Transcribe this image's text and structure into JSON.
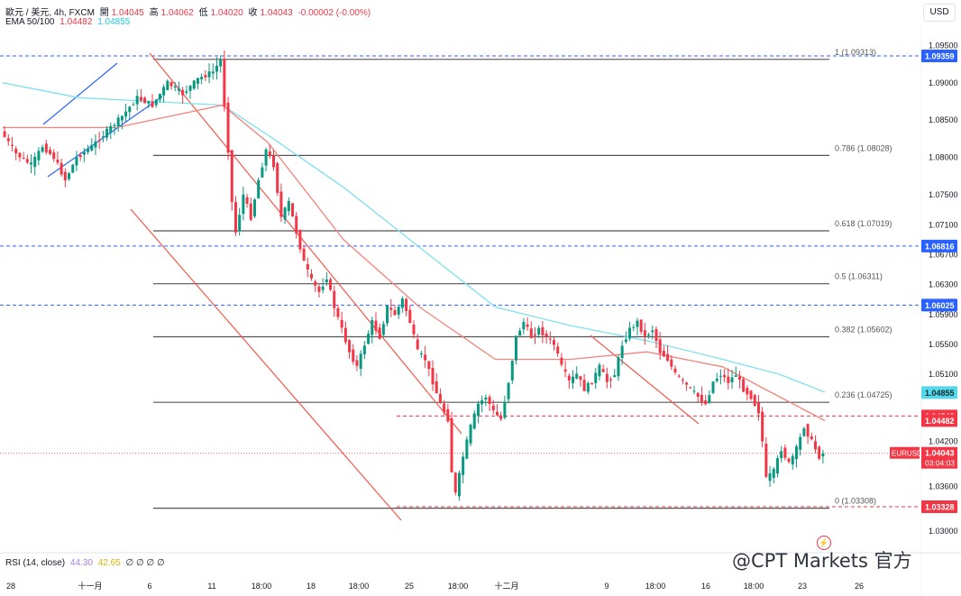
{
  "header": {
    "symbol": "歐元 / 美元, 4h, FXCM",
    "open_label": "開",
    "open": "1.04045",
    "high_label": "高",
    "high": "1.04062",
    "low_label": "低",
    "low": "1.04020",
    "close_label": "收",
    "close": "1.04043",
    "change": "-0.00002 (-0.00%)",
    "ema_label": "EMA 50/100",
    "ema50": "1.04482",
    "ema100": "1.04855",
    "rsi_label": "RSI (14, close)",
    "rsi_value": "44.30",
    "rsi_ma": "42.65",
    "rsi_extra": "∅ ∅ ∅ ∅"
  },
  "currency_button": "USD",
  "watermark": "@CPT Markets 官方",
  "colors": {
    "up": "#089981",
    "down": "#f23645",
    "ema50": "#f4837b",
    "ema100": "#7fe0ee",
    "channel": "#f5574b",
    "wedge": "#2962ff",
    "fib": "#555555",
    "dashed_blue": "#2962ff",
    "dashed_red": "#f23645"
  },
  "chart_data": {
    "type": "candlestick",
    "instrument": "EUR/USD",
    "timeframe": "4h",
    "ylim": [
      1.0278,
      1.0972
    ],
    "y_ticks": [
      "1.09500",
      "1.09000",
      "1.08500",
      "1.08000",
      "1.07500",
      "1.07100",
      "1.06700",
      "1.06300",
      "1.05900",
      "1.05500",
      "1.05100",
      "1.04200",
      "1.03600",
      "1.03000"
    ],
    "x_ticks": [
      "28",
      "十一月",
      "6",
      "11",
      "18:00",
      "18",
      "18:00",
      "25",
      "18:00",
      "十二月",
      "9",
      "18:00",
      "16",
      "18:00",
      "23",
      "26"
    ],
    "fib_levels": [
      {
        "label": "1 (1.09313)",
        "value": 1.09313
      },
      {
        "label": "0.786 (1.08028)",
        "value": 1.08028
      },
      {
        "label": "0.618 (1.07019)",
        "value": 1.07019
      },
      {
        "label": "0.5 (1.06311)",
        "value": 1.06311
      },
      {
        "label": "0.382 (1.05602)",
        "value": 1.05602
      },
      {
        "label": "0.236 (1.04725)",
        "value": 1.04725
      },
      {
        "label": "0 (1.03308)",
        "value": 1.03308
      }
    ],
    "price_tags": [
      {
        "text": "1.09359",
        "value": 1.09359,
        "style": "blue"
      },
      {
        "text": "1.06816",
        "value": 1.06816,
        "style": "blue"
      },
      {
        "text": "1.06025",
        "value": 1.06025,
        "style": "blue"
      },
      {
        "text": "1.04855",
        "value": 1.04855,
        "style": "cyan"
      },
      {
        "text": "1.04542",
        "value": 1.04542,
        "style": "red"
      },
      {
        "text": "1.04482",
        "value": 1.04482,
        "style": "red"
      },
      {
        "text": "1.03328",
        "value": 1.03328,
        "style": "red"
      }
    ],
    "last_price": {
      "label": "EURUSD",
      "value": 1.04043,
      "text": "1.04043",
      "countdown": "03:04:03"
    },
    "dashed_lines": [
      {
        "value": 1.09359,
        "color": "blue"
      },
      {
        "value": 1.06816,
        "color": "blue"
      },
      {
        "value": 1.06025,
        "color": "blue"
      },
      {
        "value": 1.04542,
        "color": "red"
      },
      {
        "value": 1.03328,
        "color": "red"
      }
    ],
    "price_path": [
      [
        0,
        1.0835
      ],
      [
        4,
        1.0805
      ],
      [
        8,
        1.079
      ],
      [
        11,
        1.0815
      ],
      [
        14,
        1.08
      ],
      [
        17,
        1.077
      ],
      [
        20,
        1.08
      ],
      [
        24,
        1.0815
      ],
      [
        28,
        1.0835
      ],
      [
        32,
        1.0855
      ],
      [
        36,
        1.088
      ],
      [
        40,
        1.087
      ],
      [
        44,
        1.09
      ],
      [
        48,
        1.0885
      ],
      [
        52,
        1.0905
      ],
      [
        56,
        1.0915
      ],
      [
        58,
        1.093
      ],
      [
        59,
        1.087
      ],
      [
        60,
        1.081
      ],
      [
        61,
        1.074
      ],
      [
        62,
        1.07
      ],
      [
        64,
        1.075
      ],
      [
        66,
        1.072
      ],
      [
        68,
        1.077
      ],
      [
        70,
        1.081
      ],
      [
        72,
        1.079
      ],
      [
        74,
        1.072
      ],
      [
        76,
        1.074
      ],
      [
        78,
        1.07
      ],
      [
        80,
        1.066
      ],
      [
        82,
        1.0635
      ],
      [
        84,
        1.062
      ],
      [
        86,
        1.064
      ],
      [
        88,
        1.06
      ],
      [
        90,
        1.057
      ],
      [
        92,
        1.054
      ],
      [
        94,
        1.052
      ],
      [
        96,
        1.055
      ],
      [
        98,
        1.058
      ],
      [
        100,
        1.056
      ],
      [
        102,
        1.06
      ],
      [
        104,
        1.059
      ],
      [
        106,
        1.061
      ],
      [
        108,
        1.058
      ],
      [
        110,
        1.054
      ],
      [
        112,
        1.053
      ],
      [
        114,
        1.05
      ],
      [
        116,
        1.047
      ],
      [
        118,
        1.045
      ],
      [
        119,
        1.038
      ],
      [
        120,
        1.035
      ],
      [
        122,
        1.04
      ],
      [
        124,
        1.044
      ],
      [
        126,
        1.047
      ],
      [
        128,
        1.048
      ],
      [
        130,
        1.046
      ],
      [
        132,
        1.045
      ],
      [
        134,
        1.05
      ],
      [
        136,
        1.056
      ],
      [
        138,
        1.058
      ],
      [
        140,
        1.056
      ],
      [
        142,
        1.057
      ],
      [
        144,
        1.056
      ],
      [
        146,
        1.055
      ],
      [
        148,
        1.052
      ],
      [
        150,
        1.05
      ],
      [
        152,
        1.051
      ],
      [
        154,
        1.049
      ],
      [
        156,
        1.05
      ],
      [
        158,
        1.052
      ],
      [
        160,
        1.05
      ],
      [
        162,
        1.051
      ],
      [
        164,
        1.055
      ],
      [
        166,
        1.057
      ],
      [
        168,
        1.058
      ],
      [
        170,
        1.056
      ],
      [
        172,
        1.057
      ],
      [
        174,
        1.054
      ],
      [
        176,
        1.053
      ],
      [
        178,
        1.051
      ],
      [
        180,
        1.05
      ],
      [
        182,
        1.049
      ],
      [
        184,
        1.048
      ],
      [
        186,
        1.047
      ],
      [
        188,
        1.05
      ],
      [
        190,
        1.051
      ],
      [
        192,
        1.05
      ],
      [
        194,
        1.051
      ],
      [
        196,
        1.049
      ],
      [
        198,
        1.048
      ],
      [
        200,
        1.046
      ],
      [
        201,
        1.042
      ],
      [
        202,
        1.037
      ],
      [
        204,
        1.038
      ],
      [
        206,
        1.041
      ],
      [
        208,
        1.039
      ],
      [
        210,
        1.041
      ],
      [
        212,
        1.044
      ],
      [
        214,
        1.042
      ],
      [
        216,
        1.04
      ],
      [
        217,
        1.04043
      ]
    ],
    "ema50_path": [
      [
        0,
        1.084
      ],
      [
        30,
        1.084
      ],
      [
        58,
        1.087
      ],
      [
        70,
        1.082
      ],
      [
        90,
        1.069
      ],
      [
        110,
        1.06
      ],
      [
        130,
        1.053
      ],
      [
        150,
        1.053
      ],
      [
        170,
        1.054
      ],
      [
        190,
        1.052
      ],
      [
        205,
        1.048
      ],
      [
        217,
        1.0448
      ]
    ],
    "ema100_path": [
      [
        0,
        1.09
      ],
      [
        20,
        1.088
      ],
      [
        58,
        1.087
      ],
      [
        70,
        1.083
      ],
      [
        90,
        1.076
      ],
      [
        110,
        1.068
      ],
      [
        130,
        1.06
      ],
      [
        150,
        1.0575
      ],
      [
        170,
        1.0555
      ],
      [
        190,
        1.053
      ],
      [
        205,
        1.051
      ],
      [
        217,
        1.0486
      ]
    ]
  }
}
